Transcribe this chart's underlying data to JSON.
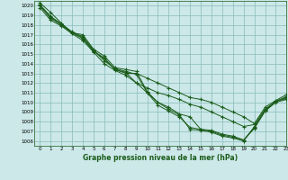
{
  "title": "Graphe pression niveau de la mer (hPa)",
  "background_color": "#cce8e8",
  "grid_color": "#88bbbb",
  "line_color": "#1a5c1a",
  "xlim": [
    -0.5,
    23
  ],
  "ylim": [
    1005.5,
    1020.5
  ],
  "yticks": [
    1006,
    1007,
    1008,
    1009,
    1010,
    1011,
    1012,
    1013,
    1014,
    1015,
    1016,
    1017,
    1018,
    1019,
    1020
  ],
  "xticks": [
    0,
    1,
    2,
    3,
    4,
    5,
    6,
    7,
    8,
    9,
    10,
    11,
    12,
    13,
    14,
    15,
    16,
    17,
    18,
    19,
    20,
    21,
    22,
    23
  ],
  "series": [
    [
      1020.3,
      1019.3,
      1018.2,
      1017.2,
      1017.0,
      1015.5,
      1014.8,
      1013.6,
      1013.4,
      1013.2,
      1011.1,
      1010.0,
      1009.5,
      1008.8,
      1008.5,
      1007.2,
      1007.1,
      1006.7,
      1006.5,
      1006.1,
      1007.3,
      1009.1,
      1010.1,
      1010.4
    ],
    [
      1020.0,
      1018.8,
      1018.1,
      1017.3,
      1016.8,
      1015.4,
      1014.3,
      1013.5,
      1013.2,
      1012.9,
      1011.0,
      1009.7,
      1009.1,
      1008.5,
      1007.4,
      1007.2,
      1007.0,
      1006.6,
      1006.4,
      1006.1,
      1007.4,
      1009.1,
      1010.0,
      1010.3
    ],
    [
      1019.8,
      1018.5,
      1017.9,
      1017.1,
      1016.4,
      1015.2,
      1014.0,
      1013.3,
      1012.8,
      1012.0,
      1011.0,
      1010.0,
      1009.3,
      1008.7,
      1007.2,
      1007.1,
      1006.9,
      1006.5,
      1006.3,
      1006.0,
      1007.5,
      1009.2,
      1010.1,
      1010.5
    ],
    [
      1020.0,
      1018.7,
      1018.0,
      1017.2,
      1016.6,
      1015.3,
      1014.6,
      1013.4,
      1013.0,
      1013.0,
      1012.5,
      1012.0,
      1011.5,
      1011.0,
      1010.5,
      1010.3,
      1010.0,
      1009.5,
      1009.0,
      1008.5,
      1007.8,
      1009.5,
      1010.2,
      1010.8
    ],
    [
      1020.1,
      1018.9,
      1018.1,
      1017.2,
      1016.7,
      1015.3,
      1014.5,
      1013.4,
      1013.1,
      1012.0,
      1011.5,
      1011.0,
      1010.7,
      1010.3,
      1009.8,
      1009.5,
      1009.0,
      1008.5,
      1008.0,
      1007.5,
      1007.7,
      1009.3,
      1010.1,
      1010.6
    ]
  ]
}
